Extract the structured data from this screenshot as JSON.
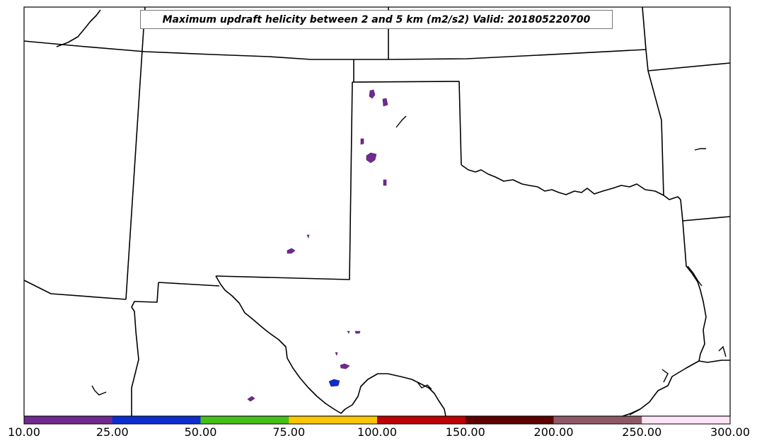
{
  "title": "Maximum updraft helicity between 2 and 5 km (m2/s2) Valid: 201805220700",
  "colorbar": {
    "ticks": [
      "10.00",
      "25.00",
      "50.00",
      "75.00",
      "100.00",
      "150.00",
      "200.00",
      "250.00",
      "300.00"
    ],
    "colors": [
      "#702a90",
      "#0a2ed0",
      "#46c019",
      "#fcc600",
      "#bf0000",
      "#5e0000",
      "#8f5868",
      "#fce4f6"
    ]
  },
  "colors": {
    "boundary": "#000000",
    "background": "#ffffff"
  }
}
